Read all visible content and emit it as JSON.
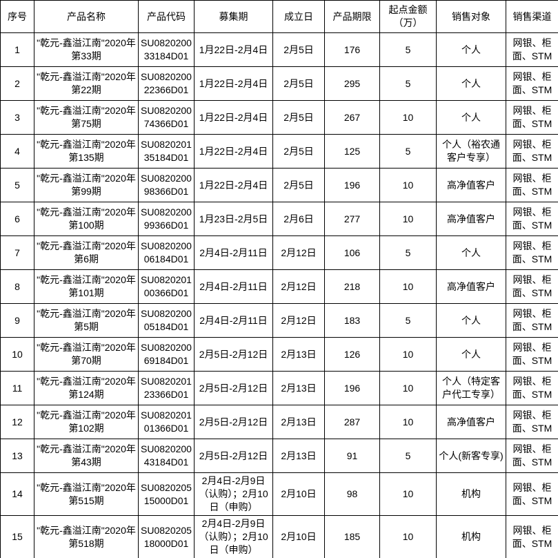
{
  "colors": {
    "border": "#000000",
    "text": "#000000",
    "background": "#ffffff"
  },
  "table": {
    "columns": [
      {
        "key": "seq",
        "label": "序号"
      },
      {
        "key": "name",
        "label": "产品名称"
      },
      {
        "key": "code",
        "label": "产品代码"
      },
      {
        "key": "raise_period",
        "label": "募集期"
      },
      {
        "key": "value_date",
        "label": "成立日"
      },
      {
        "key": "term",
        "label": "产品期限"
      },
      {
        "key": "min_amount",
        "label": "起点金额（万）"
      },
      {
        "key": "sales_target",
        "label": "销售对象"
      },
      {
        "key": "sales_channel",
        "label": "销售渠道"
      }
    ],
    "rows": [
      {
        "seq": "1",
        "name": "\"乾元-鑫溢江南\"2020年第33期",
        "code": "SU082020033184D01",
        "raise_period": "1月22日-2月4日",
        "value_date": "2月5日",
        "term": "176",
        "min_amount": "5",
        "sales_target": "个人",
        "sales_channel": "网银、柜面、STM"
      },
      {
        "seq": "2",
        "name": "\"乾元-鑫溢江南\"2020年第22期",
        "code": "SU082020022366D01",
        "raise_period": "1月22日-2月4日",
        "value_date": "2月5日",
        "term": "295",
        "min_amount": "5",
        "sales_target": "个人",
        "sales_channel": "网银、柜面、STM"
      },
      {
        "seq": "3",
        "name": "\"乾元-鑫溢江南\"2020年第75期",
        "code": "SU082020074366D01",
        "raise_period": "1月22日-2月4日",
        "value_date": "2月5日",
        "term": "267",
        "min_amount": "10",
        "sales_target": "个人",
        "sales_channel": "网银、柜面、STM"
      },
      {
        "seq": "4",
        "name": "\"乾元-鑫溢江南\"2020年第135期",
        "code": "SU082020135184D01",
        "raise_period": "1月22日-2月4日",
        "value_date": "2月5日",
        "term": "125",
        "min_amount": "5",
        "sales_target": "个人（裕农通客户专享）",
        "sales_channel": "网银、柜面、STM"
      },
      {
        "seq": "5",
        "name": "\"乾元-鑫溢江南\"2020年第99期",
        "code": "SU082020098366D01",
        "raise_period": "1月22日-2月4日",
        "value_date": "2月5日",
        "term": "196",
        "min_amount": "10",
        "sales_target": "高净值客户",
        "sales_channel": "网银、柜面、STM"
      },
      {
        "seq": "6",
        "name": "\"乾元-鑫溢江南\"2020年第100期",
        "code": "SU082020099366D01",
        "raise_period": "1月23日-2月5日",
        "value_date": "2月6日",
        "term": "277",
        "min_amount": "10",
        "sales_target": "高净值客户",
        "sales_channel": "网银、柜面、STM"
      },
      {
        "seq": "7",
        "name": "\"乾元-鑫溢江南\"2020年第6期",
        "code": "SU082020006184D01",
        "raise_period": "2月4日-2月11日",
        "value_date": "2月12日",
        "term": "106",
        "min_amount": "5",
        "sales_target": "个人",
        "sales_channel": "网银、柜面、STM"
      },
      {
        "seq": "8",
        "name": "\"乾元-鑫溢江南\"2020年第101期",
        "code": "SU082020100366D01",
        "raise_period": "2月4日-2月11日",
        "value_date": "2月12日",
        "term": "218",
        "min_amount": "10",
        "sales_target": "高净值客户",
        "sales_channel": "网银、柜面、STM"
      },
      {
        "seq": "9",
        "name": "\"乾元-鑫溢江南\"2020年第5期",
        "code": "SU082020005184D01",
        "raise_period": "2月4日-2月11日",
        "value_date": "2月12日",
        "term": "183",
        "min_amount": "5",
        "sales_target": "个人",
        "sales_channel": "网银、柜面、STM"
      },
      {
        "seq": "10",
        "name": "\"乾元-鑫溢江南\"2020年第70期",
        "code": "SU082020069184D01",
        "raise_period": "2月5日-2月12日",
        "value_date": "2月13日",
        "term": "126",
        "min_amount": "10",
        "sales_target": "个人",
        "sales_channel": "网银、柜面、STM"
      },
      {
        "seq": "11",
        "name": "\"乾元-鑫溢江南\"2020年第124期",
        "code": "SU082020123366D01",
        "raise_period": "2月5日-2月12日",
        "value_date": "2月13日",
        "term": "196",
        "min_amount": "10",
        "sales_target": "个人（特定客户代工专享）",
        "sales_channel": "网银、柜面、STM"
      },
      {
        "seq": "12",
        "name": "\"乾元-鑫溢江南\"2020年第102期",
        "code": "SU082020101366D01",
        "raise_period": "2月5日-2月12日",
        "value_date": "2月13日",
        "term": "287",
        "min_amount": "10",
        "sales_target": "高净值客户",
        "sales_channel": "网银、柜面、STM"
      },
      {
        "seq": "13",
        "name": "\"乾元-鑫溢江南\"2020年第43期",
        "code": "SU082020043184D01",
        "raise_period": "2月5日-2月12日",
        "value_date": "2月13日",
        "term": "91",
        "min_amount": "5",
        "sales_target": "个人(新客专享)",
        "sales_channel": "网银、柜面、STM"
      },
      {
        "seq": "14",
        "name": "\"乾元-鑫溢江南\"2020年第515期",
        "code": "SU082020515000D01",
        "raise_period": "2月4日-2月9日（认购）；2月10日（申购）",
        "value_date": "2月10日",
        "term": "98",
        "min_amount": "10",
        "sales_target": "机构",
        "sales_channel": "网银、柜面、STM"
      },
      {
        "seq": "15",
        "name": "\"乾元-鑫溢江南\"2020年第518期",
        "code": "SU082020518000D01",
        "raise_period": "2月4日-2月9日（认购）；2月10日（申购）",
        "value_date": "2月10日",
        "term": "185",
        "min_amount": "10",
        "sales_target": "机构",
        "sales_channel": "网银、柜面、STM"
      }
    ]
  }
}
